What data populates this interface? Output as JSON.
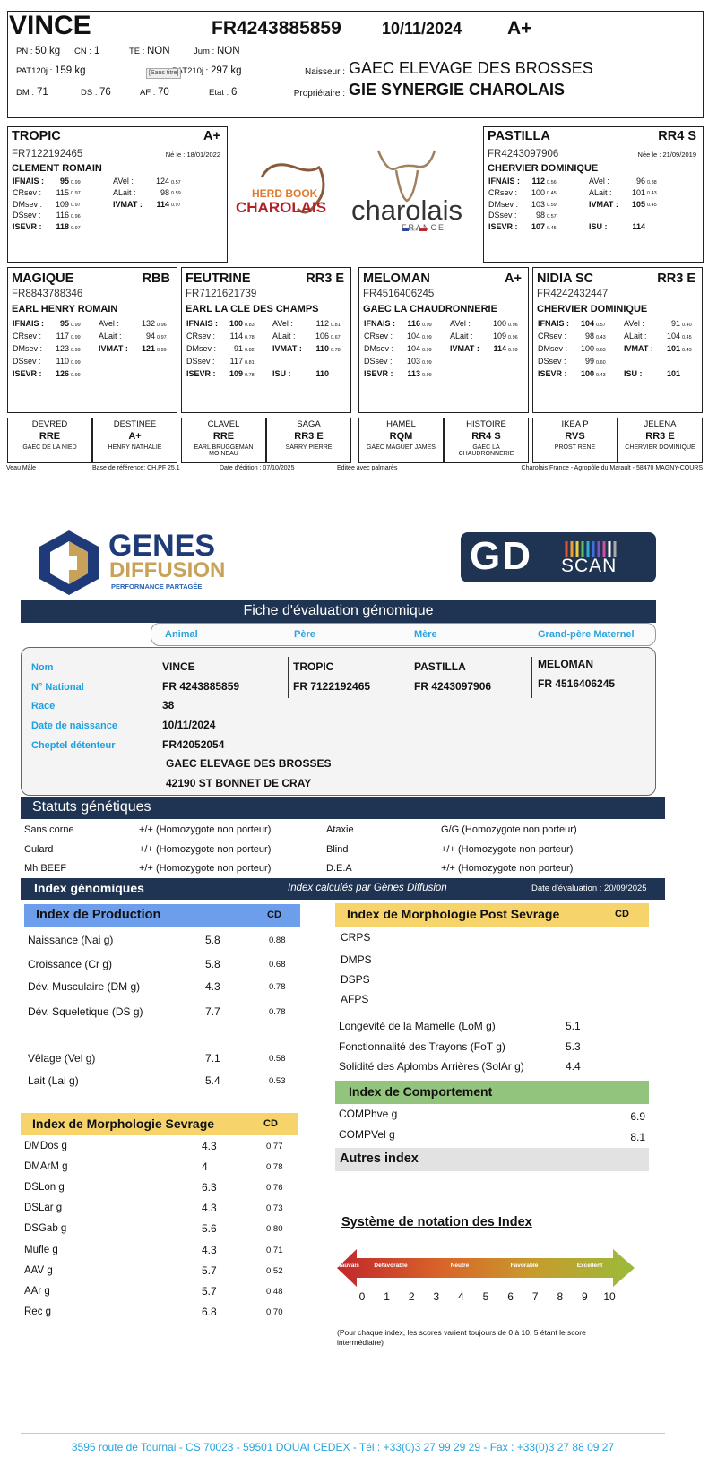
{
  "pedigree": {
    "animal": {
      "name": "VINCE",
      "id": "FR4243885859",
      "birth_date": "10/11/2024",
      "grade": "A+",
      "stats": [
        {
          "label": "PN :",
          "value": "50 kg"
        },
        {
          "label": "CN :",
          "value": "1"
        },
        {
          "label": "TE :",
          "value": "NON"
        },
        {
          "label": "Jum :",
          "value": "NON"
        },
        {
          "label": "PAT120j :",
          "value": "159 kg"
        },
        {
          "label": "PAT210j :",
          "value": "297 kg"
        },
        {
          "label": "DM :",
          "value": "71"
        },
        {
          "label": "DS :",
          "value": "76"
        },
        {
          "label": "AF :",
          "value": "70"
        },
        {
          "label": "Etat :",
          "value": "6"
        }
      ],
      "tooltip": "[Sans titre]",
      "breeder_label": "Naisseur :",
      "breeder": "GAEC ELEVAGE DES BROSSES",
      "owner_label": "Propriétaire :",
      "owner": "GIE SYNERGIE CHAROLAIS"
    },
    "sire": {
      "name": "TROPIC",
      "grade": "A+",
      "id": "FR7122192465",
      "born": "Né le : 18/01/2022",
      "owner": "CLEMENT ROMAIN",
      "rows": [
        [
          {
            "l": "IFNAIS :",
            "v": "95",
            "c": "0.99"
          },
          {
            "l": "AVel :",
            "v": "124",
            "c": "0.57"
          }
        ],
        [
          {
            "l": "CRsev :",
            "v": "115",
            "c": "0.97"
          },
          {
            "l": "ALait :",
            "v": "98",
            "c": "0.59"
          }
        ],
        [
          {
            "l": "DMsev :",
            "v": "109",
            "c": "0.97"
          },
          {
            "l": "IVMAT :",
            "v": "114",
            "c": "0.97"
          }
        ],
        [
          {
            "l": "DSsev :",
            "v": "116",
            "c": "0.96"
          }
        ],
        [
          {
            "l": "ISEVR :",
            "v": "118",
            "c": "0.97"
          }
        ]
      ]
    },
    "dam": {
      "name": "PASTILLA",
      "grade": "RR4 S",
      "id": "FR4243097906",
      "born": "Née le : 21/09/2019",
      "owner": "CHERVIER DOMINIQUE",
      "rows": [
        [
          {
            "l": "IFNAIS :",
            "v": "112",
            "c": "0.56"
          },
          {
            "l": "AVel :",
            "v": "96",
            "c": "0.38"
          }
        ],
        [
          {
            "l": "CRsev :",
            "v": "100",
            "c": "0.45"
          },
          {
            "l": "ALait :",
            "v": "101",
            "c": "0.43"
          }
        ],
        [
          {
            "l": "DMsev :",
            "v": "103",
            "c": "0.59"
          },
          {
            "l": "IVMAT :",
            "v": "105",
            "c": "0.45"
          }
        ],
        [
          {
            "l": "DSsev :",
            "v": "98",
            "c": "0.57"
          }
        ],
        [
          {
            "l": "ISEVR :",
            "v": "107",
            "c": "0.45"
          },
          {
            "l": "ISU :",
            "v": "114"
          }
        ]
      ]
    },
    "grandparents": [
      {
        "name": "MAGIQUE",
        "grade": "RBB",
        "id": "FR8843788346",
        "owner": "EARL HENRY ROMAIN",
        "rows": [
          [
            {
              "l": "IFNAIS :",
              "v": "95",
              "c": "0.99"
            },
            {
              "l": "AVel :",
              "v": "132",
              "c": "0.96"
            }
          ],
          [
            {
              "l": "CRsev :",
              "v": "117",
              "c": "0.99"
            },
            {
              "l": "ALait :",
              "v": "94",
              "c": "0.97"
            }
          ],
          [
            {
              "l": "DMsev :",
              "v": "123",
              "c": "0.99"
            },
            {
              "l": "IVMAT :",
              "v": "121",
              "c": "0.99"
            }
          ],
          [
            {
              "l": "DSsev :",
              "v": "110",
              "c": "0.99"
            }
          ],
          [
            {
              "l": "ISEVR :",
              "v": "126",
              "c": "0.99"
            }
          ]
        ]
      },
      {
        "name": "FEUTRINE",
        "grade": "RR3 E",
        "id": "FR7121621739",
        "owner": "EARL LA CLE DES CHAMPS",
        "rows": [
          [
            {
              "l": "IFNAIS :",
              "v": "100",
              "c": "0.83"
            },
            {
              "l": "AVel :",
              "v": "112",
              "c": "0.81"
            }
          ],
          [
            {
              "l": "CRsev :",
              "v": "114",
              "c": "0.78"
            },
            {
              "l": "ALait :",
              "v": "106",
              "c": "0.67"
            }
          ],
          [
            {
              "l": "DMsev :",
              "v": "91",
              "c": "0.82"
            },
            {
              "l": "IVMAT :",
              "v": "110",
              "c": "0.78"
            }
          ],
          [
            {
              "l": "DSsev :",
              "v": "117",
              "c": "0.81"
            }
          ],
          [
            {
              "l": "ISEVR :",
              "v": "109",
              "c": "0.78"
            },
            {
              "l": "ISU :",
              "v": "110"
            }
          ]
        ]
      },
      {
        "name": "MELOMAN",
        "grade": "A+",
        "id": "FR4516406245",
        "owner": "GAEC LA CHAUDRONNERIE",
        "rows": [
          [
            {
              "l": "IFNAIS :",
              "v": "116",
              "c": "0.99"
            },
            {
              "l": "AVel :",
              "v": "100",
              "c": "0.96"
            }
          ],
          [
            {
              "l": "CRsev :",
              "v": "104",
              "c": "0.99"
            },
            {
              "l": "ALait :",
              "v": "109",
              "c": "0.96"
            }
          ],
          [
            {
              "l": "DMsev :",
              "v": "104",
              "c": "0.99"
            },
            {
              "l": "IVMAT :",
              "v": "114",
              "c": "0.99"
            }
          ],
          [
            {
              "l": "DSsev :",
              "v": "103",
              "c": "0.99"
            }
          ],
          [
            {
              "l": "ISEVR :",
              "v": "113",
              "c": "0.99"
            }
          ]
        ]
      },
      {
        "name": "NIDIA SC",
        "grade": "RR3 E",
        "id": "FR4242432447",
        "owner": "CHERVIER DOMINIQUE",
        "rows": [
          [
            {
              "l": "IFNAIS :",
              "v": "104",
              "c": "0.57"
            },
            {
              "l": "AVel :",
              "v": "91",
              "c": "0.40"
            }
          ],
          [
            {
              "l": "CRsev :",
              "v": "98",
              "c": "0.43"
            },
            {
              "l": "ALait :",
              "v": "104",
              "c": "0.45"
            }
          ],
          [
            {
              "l": "DMsev :",
              "v": "100",
              "c": "0.63"
            },
            {
              "l": "IVMAT :",
              "v": "101",
              "c": "0.43"
            }
          ],
          [
            {
              "l": "DSsev :",
              "v": "99",
              "c": "0.60"
            }
          ],
          [
            {
              "l": "ISEVR :",
              "v": "100",
              "c": "0.43"
            },
            {
              "l": "ISU :",
              "v": "101"
            }
          ]
        ]
      }
    ],
    "great_grandparents": [
      {
        "name": "DEVRED",
        "grade": "RRE",
        "owner": "GAEC DE LA NIED"
      },
      {
        "name": "DESTINEE",
        "grade": "A+",
        "owner": "HENRY NATHALIE"
      },
      {
        "name": "CLAVEL",
        "grade": "RRE",
        "owner": "EARL BRUGGEMAN MOINEAU"
      },
      {
        "name": "SAGA",
        "grade": "RR3 E",
        "owner": "SARRY PIERRE"
      },
      {
        "name": "HAMEL",
        "grade": "RQM",
        "owner": "GAEC MAGUET JAMES"
      },
      {
        "name": "HISTOIRE",
        "grade": "RR4 S",
        "owner": "GAEC LA CHAUDRONNERIE"
      },
      {
        "name": "IKEA P",
        "grade": "RVS",
        "owner": "PROST RENE"
      },
      {
        "name": "JELENA",
        "grade": "RR3 E",
        "owner": "CHERVIER DOMINIQUE"
      }
    ],
    "logo": {
      "herd_book": "HERD BOOK",
      "charolais": "CHAROLAIS",
      "charolais_france": "charolais",
      "france": "FRANCE"
    },
    "footer": [
      "Veau Mâle",
      "Base de référence: CH.PF 25.1",
      "Date d'édition : 07/10/2025",
      "Editée avec palmarès",
      "Charolais France - Agropôle du Marault - 58470 MAGNY-COURS"
    ]
  },
  "genomic": {
    "logo": {
      "genes": "GENES",
      "diffusion": "DIFFUSION",
      "tagline": "PERFORMANCE PARTAGÉE",
      "gd": "GD",
      "scan": "SCAN"
    },
    "title": "Fiche d'évaluation génomique",
    "tabs": [
      "Animal",
      "Père",
      "Mère",
      "Grand-père Maternel"
    ],
    "fields": {
      "labels": [
        "Nom",
        "N° National",
        "Race",
        "Date de naissance",
        "Cheptel détenteur"
      ],
      "animal": [
        "VINCE",
        "FR 4243885859",
        "38",
        "10/11/2024",
        "FR42052054",
        "GAEC ELEVAGE DES BROSSES",
        "42190 ST BONNET DE CRAY"
      ],
      "sire": [
        "TROPIC",
        "FR 7122192465"
      ],
      "dam": [
        "PASTILLA",
        "FR 4243097906"
      ],
      "maternal_grandsire": [
        "MELOMAN",
        "FR 4516406245"
      ]
    },
    "status": {
      "title": "Statuts génétiques",
      "rows": [
        [
          "Sans corne",
          "+/+ (Homozygote non porteur)",
          "Ataxie",
          "G/G (Homozygote non porteur)"
        ],
        [
          "Culard",
          "+/+ (Homozygote non porteur)",
          "Blind",
          "+/+ (Homozygote non porteur)"
        ],
        [
          "Mh BEEF",
          "+/+ (Homozygote non porteur)",
          "D.E.A",
          "+/+ (Homozygote non porteur)"
        ]
      ]
    },
    "index": {
      "title": "Index génomiques",
      "note": "Index calculés par Gènes Diffusion",
      "date": "Date d'évaluation : 20/09/2025",
      "production": {
        "title": "Index de Production",
        "cd": "CD",
        "rows": [
          [
            "Naissance (Nai g)",
            "5.8",
            "0.88"
          ],
          [
            "Croissance (Cr g)",
            "5.8",
            "0.68"
          ],
          [
            "Dév. Musculaire (DM g)",
            "4.3",
            "0.78"
          ],
          [
            "Dév. Squeletique (DS g)",
            "7.7",
            "0.78"
          ],
          [
            "Vêlage (Vel g)",
            "7.1",
            "0.58"
          ],
          [
            "Lait (Lai g)",
            "5.4",
            "0.53"
          ]
        ]
      },
      "weaning": {
        "title": "Index de Morphologie Sevrage",
        "cd": "CD",
        "rows": [
          [
            "DMDos g",
            "4.3",
            "0.77"
          ],
          [
            "DMArM g",
            "4",
            "0.78"
          ],
          [
            "DSLon g",
            "6.3",
            "0.76"
          ],
          [
            "DSLar g",
            "4.3",
            "0.73"
          ],
          [
            "DSGab g",
            "5.6",
            "0.80"
          ],
          [
            "Mufle g",
            "4.3",
            "0.71"
          ],
          [
            "AAV g",
            "5.7",
            "0.52"
          ],
          [
            "AAr g",
            "5.7",
            "0.48"
          ],
          [
            "Rec g",
            "6.8",
            "0.70"
          ]
        ]
      },
      "post_weaning": {
        "title": "Index de Morphologie Post Sevrage",
        "cd": "CD",
        "items": [
          "CRPS",
          "DMPS",
          "DSPS",
          "AFPS"
        ],
        "rows": [
          [
            "Longevité de la Mamelle (LoM g)",
            "5.1"
          ],
          [
            "Fonctionnalité des Trayons (FoT g)",
            "5.3"
          ],
          [
            "Solidité des Aplombs Arrières (SolAr g)",
            "4.4"
          ]
        ]
      },
      "behaviour": {
        "title": "Index de Comportement",
        "rows": [
          [
            "COMPhve g",
            "6.9"
          ],
          [
            "COMPVel g",
            "8.1"
          ]
        ]
      },
      "other": {
        "title": "Autres index"
      }
    },
    "scale": {
      "title": "Système de notation des Index",
      "labels": [
        "Mauvais",
        "Défavorable",
        "Neutre",
        "Favorable",
        "Excellent"
      ],
      "ticks": [
        0,
        1,
        2,
        3,
        4,
        5,
        6,
        7,
        8,
        9,
        10
      ],
      "note": "(Pour chaque index, les scores varient toujours de 0 à 10, 5 étant le score intermédiaire)"
    },
    "footer": "3595 route de Tournai - CS 70023 - 59501 DOUAI CEDEX - Tél : +33(0)3 27 99 29 29 - Fax : +33(0)3 27 88 09 27"
  }
}
